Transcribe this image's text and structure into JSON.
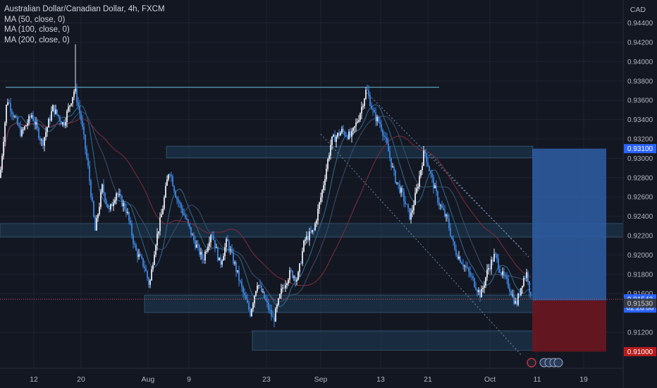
{
  "legend": {
    "title": "Australian Dollar/Canadian Dollar, 4h, FXCM",
    "indicators": [
      "MA (50, close, 0)",
      "MA (100, close, 0)",
      "MA (200, close, 0)"
    ]
  },
  "axis_currency": "CAD",
  "colors": {
    "background": "#131722",
    "grid": "#1f2330",
    "text": "#b2b5be",
    "candle_up": "#e8ecf5",
    "candle_down": "#3d86e0",
    "ma50": "#2f6b8e",
    "ma100": "#3a4f6a",
    "ma200": "#7a2d3a",
    "zone": "#1f3c55",
    "profit_zone": "#2f5ea6",
    "loss_zone": "#6b1620",
    "current_price": "#2962ff",
    "stop_price": "#b71c1c",
    "target_price": "#2962ff",
    "entry_tag": "#2962ff"
  },
  "chart_data": {
    "type": "candlestick",
    "symbol": "Australian Dollar/Canadian Dollar",
    "timeframe": "4h",
    "ylim": [
      0.9085,
      0.9455
    ],
    "y_ticks": [
      "0.94400",
      "0.94200",
      "0.94000",
      "0.93800",
      "0.93600",
      "0.93400",
      "0.93200",
      "0.93000",
      "0.92800",
      "0.92600",
      "0.92400",
      "0.92200",
      "0.92000",
      "0.91800",
      "0.91600",
      "0.91200"
    ],
    "x_ticks": [
      "12",
      "20",
      "Aug",
      "9",
      "23",
      "Sep",
      "13",
      "21",
      "Oct",
      "11",
      "19"
    ],
    "price_labels": {
      "target": "0.93100",
      "current": "0.91542",
      "countdown": "02:28:00",
      "entry": "0.91530",
      "stop": "0.91000"
    },
    "anchors": [
      {
        "x": 0,
        "p": 0.928
      },
      {
        "x": 10,
        "p": 0.9362
      },
      {
        "x": 30,
        "p": 0.9325
      },
      {
        "x": 45,
        "p": 0.9345
      },
      {
        "x": 60,
        "p": 0.9315
      },
      {
        "x": 75,
        "p": 0.9352
      },
      {
        "x": 90,
        "p": 0.9335
      },
      {
        "x": 106,
        "p": 0.9372
      },
      {
        "x": 115,
        "p": 0.934
      },
      {
        "x": 125,
        "p": 0.929
      },
      {
        "x": 135,
        "p": 0.9225
      },
      {
        "x": 145,
        "p": 0.927
      },
      {
        "x": 155,
        "p": 0.9245
      },
      {
        "x": 165,
        "p": 0.9265
      },
      {
        "x": 180,
        "p": 0.9245
      },
      {
        "x": 192,
        "p": 0.9205
      },
      {
        "x": 205,
        "p": 0.9188
      },
      {
        "x": 212,
        "p": 0.9168
      },
      {
        "x": 220,
        "p": 0.921
      },
      {
        "x": 230,
        "p": 0.9245
      },
      {
        "x": 240,
        "p": 0.929
      },
      {
        "x": 250,
        "p": 0.926
      },
      {
        "x": 262,
        "p": 0.924
      },
      {
        "x": 275,
        "p": 0.9215
      },
      {
        "x": 288,
        "p": 0.9195
      },
      {
        "x": 300,
        "p": 0.9225
      },
      {
        "x": 312,
        "p": 0.919
      },
      {
        "x": 322,
        "p": 0.9215
      },
      {
        "x": 335,
        "p": 0.9185
      },
      {
        "x": 345,
        "p": 0.916
      },
      {
        "x": 355,
        "p": 0.914
      },
      {
        "x": 365,
        "p": 0.9172
      },
      {
        "x": 378,
        "p": 0.915
      },
      {
        "x": 388,
        "p": 0.9132
      },
      {
        "x": 400,
        "p": 0.9165
      },
      {
        "x": 412,
        "p": 0.9182
      },
      {
        "x": 422,
        "p": 0.9175
      },
      {
        "x": 432,
        "p": 0.9215
      },
      {
        "x": 445,
        "p": 0.9225
      },
      {
        "x": 458,
        "p": 0.927
      },
      {
        "x": 470,
        "p": 0.9318
      },
      {
        "x": 485,
        "p": 0.9328
      },
      {
        "x": 498,
        "p": 0.9322
      },
      {
        "x": 510,
        "p": 0.9345
      },
      {
        "x": 520,
        "p": 0.9372
      },
      {
        "x": 530,
        "p": 0.9345
      },
      {
        "x": 540,
        "p": 0.9335
      },
      {
        "x": 550,
        "p": 0.931
      },
      {
        "x": 560,
        "p": 0.928
      },
      {
        "x": 572,
        "p": 0.926
      },
      {
        "x": 582,
        "p": 0.9238
      },
      {
        "x": 592,
        "p": 0.927
      },
      {
        "x": 602,
        "p": 0.9308
      },
      {
        "x": 612,
        "p": 0.928
      },
      {
        "x": 622,
        "p": 0.9255
      },
      {
        "x": 635,
        "p": 0.9235
      },
      {
        "x": 645,
        "p": 0.9205
      },
      {
        "x": 658,
        "p": 0.919
      },
      {
        "x": 670,
        "p": 0.9175
      },
      {
        "x": 682,
        "p": 0.9158
      },
      {
        "x": 692,
        "p": 0.9185
      },
      {
        "x": 702,
        "p": 0.92
      },
      {
        "x": 712,
        "p": 0.918
      },
      {
        "x": 722,
        "p": 0.9168
      },
      {
        "x": 732,
        "p": 0.9148
      },
      {
        "x": 742,
        "p": 0.9175
      },
      {
        "x": 748,
        "p": 0.9182
      },
      {
        "x": 753,
        "p": 0.9154
      }
    ],
    "zones": [
      {
        "x1": 205,
        "x2": 760,
        "p1": 0.91585,
        "p2": 0.91405
      },
      {
        "x1": 358,
        "x2": 760,
        "p1": 0.91215,
        "p2": 0.91015
      },
      {
        "x1": 0,
        "x2": 884,
        "p1": 0.92325,
        "p2": 0.92185
      },
      {
        "x1": 236,
        "x2": 756,
        "p1": 0.93125,
        "p2": 0.93005
      }
    ],
    "lines": [
      {
        "x1": 8,
        "p1": 0.93735,
        "x2": 623,
        "p2": 0.93735,
        "kind": "level"
      },
      {
        "x1": 520,
        "p1": 0.9368,
        "x2": 740,
        "p2": 0.92065,
        "kind": "dotted"
      },
      {
        "x1": 600,
        "p1": 0.9312,
        "x2": 750,
        "p2": 0.9198,
        "kind": "dotted"
      },
      {
        "x1": 455,
        "p1": 0.9325,
        "x2": 740,
        "p2": 0.9096,
        "kind": "dotted"
      }
    ],
    "position": {
      "x1": 755,
      "x2": 860,
      "entry": 0.9153,
      "target": 0.931,
      "stop": 0.91
    }
  }
}
